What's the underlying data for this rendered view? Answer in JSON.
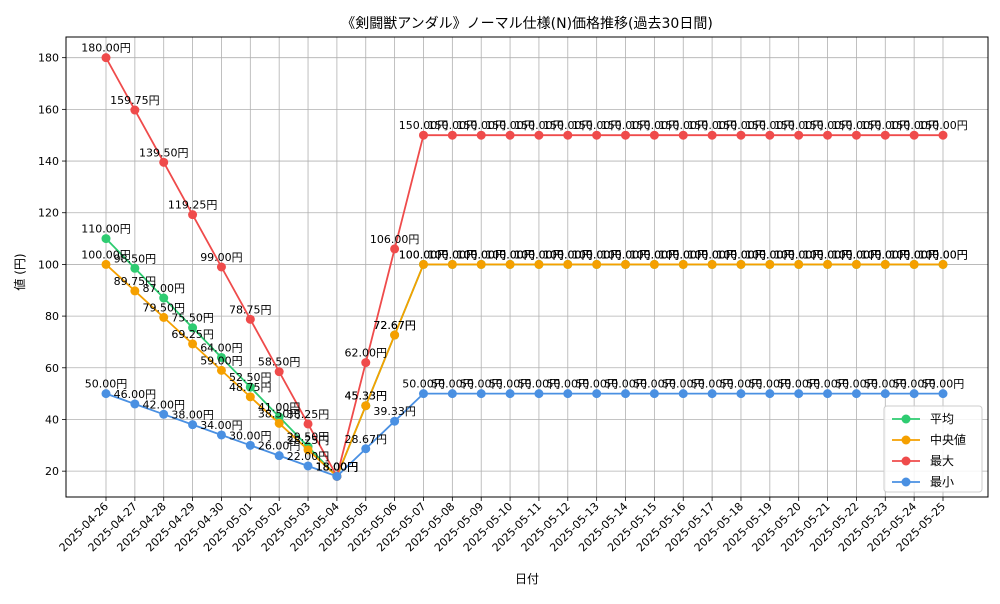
{
  "chart_data": {
    "type": "line",
    "title": "《剣闘獣アンダル》ノーマル仕様(N)価格推移(過去30日間)",
    "xlabel": "日付",
    "ylabel": "値 (円)",
    "ylim": [
      10,
      188
    ],
    "yticks": [
      20,
      40,
      60,
      80,
      100,
      120,
      140,
      160,
      180
    ],
    "grid": true,
    "legend_position": "lower-right",
    "unit_suffix": "円",
    "categories": [
      "2025-04-26",
      "2025-04-27",
      "2025-04-28",
      "2025-04-29",
      "2025-04-30",
      "2025-05-01",
      "2025-05-02",
      "2025-05-03",
      "2025-05-04",
      "2025-05-05",
      "2025-05-06",
      "2025-05-07",
      "2025-05-08",
      "2025-05-09",
      "2025-05-10",
      "2025-05-11",
      "2025-05-12",
      "2025-05-13",
      "2025-05-14",
      "2025-05-15",
      "2025-05-16",
      "2025-05-17",
      "2025-05-18",
      "2025-05-19",
      "2025-05-20",
      "2025-05-21",
      "2025-05-22",
      "2025-05-23",
      "2025-05-24",
      "2025-05-25"
    ],
    "series": [
      {
        "name": "平均",
        "color": "#2ecc71",
        "values": [
          110.0,
          98.5,
          87.0,
          75.5,
          64.0,
          52.5,
          41.0,
          29.5,
          18.0,
          45.33,
          72.67,
          100.0,
          100.0,
          100.0,
          100.0,
          100.0,
          100.0,
          100.0,
          100.0,
          100.0,
          100.0,
          100.0,
          100.0,
          100.0,
          100.0,
          100.0,
          100.0,
          100.0,
          100.0,
          100.0
        ]
      },
      {
        "name": "中央値",
        "color": "#f5a000",
        "values": [
          100.0,
          89.75,
          79.5,
          69.25,
          59.0,
          48.75,
          38.5,
          28.25,
          18.0,
          45.33,
          72.67,
          100.0,
          100.0,
          100.0,
          100.0,
          100.0,
          100.0,
          100.0,
          100.0,
          100.0,
          100.0,
          100.0,
          100.0,
          100.0,
          100.0,
          100.0,
          100.0,
          100.0,
          100.0,
          100.0
        ]
      },
      {
        "name": "最大",
        "color": "#ef4b4b",
        "values": [
          180.0,
          159.75,
          139.5,
          119.25,
          99.0,
          78.75,
          58.5,
          38.25,
          18.0,
          62.0,
          106.0,
          150.0,
          150.0,
          150.0,
          150.0,
          150.0,
          150.0,
          150.0,
          150.0,
          150.0,
          150.0,
          150.0,
          150.0,
          150.0,
          150.0,
          150.0,
          150.0,
          150.0,
          150.0,
          150.0
        ]
      },
      {
        "name": "最小",
        "color": "#4a90e2",
        "values": [
          50.0,
          46.0,
          42.0,
          38.0,
          34.0,
          30.0,
          26.0,
          22.0,
          18.0,
          28.67,
          39.33,
          50.0,
          50.0,
          50.0,
          50.0,
          50.0,
          50.0,
          50.0,
          50.0,
          50.0,
          50.0,
          50.0,
          50.0,
          50.0,
          50.0,
          50.0,
          50.0,
          50.0,
          50.0,
          50.0
        ]
      }
    ]
  }
}
